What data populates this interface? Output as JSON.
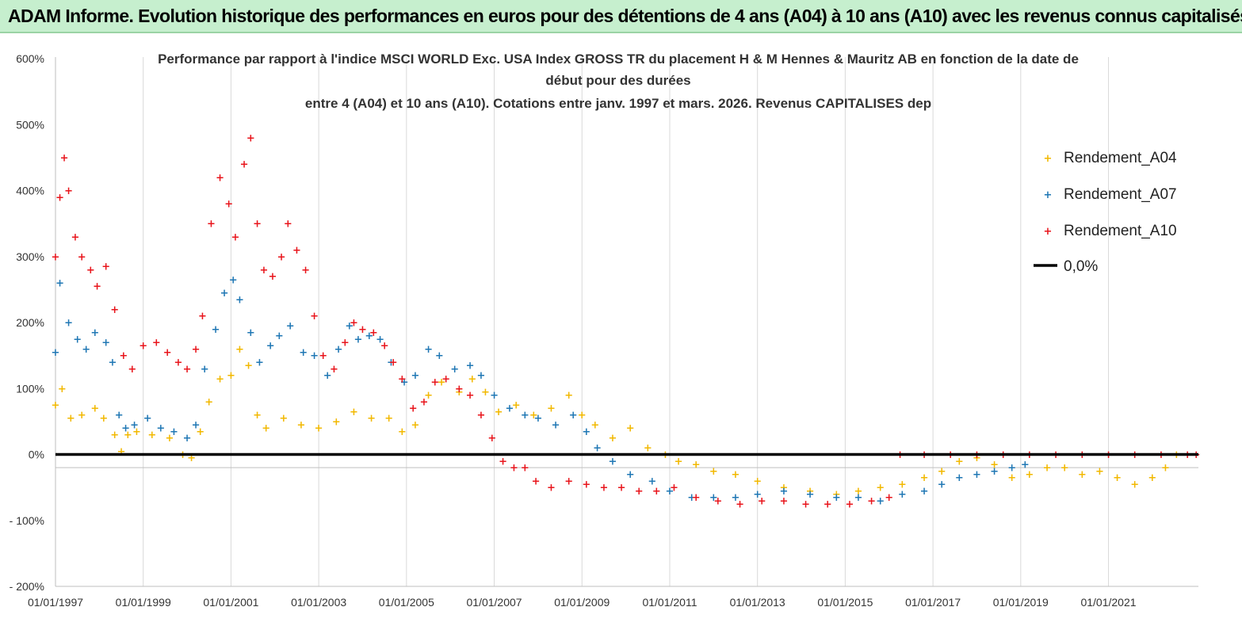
{
  "banner": {
    "title": "ADAM Informe. Evolution historique des performances en euros pour des détentions de 4 ans (A04) à 10 ans (A10) avec les revenus connus capitalisés",
    "background": "#c6efce"
  },
  "chart_data": {
    "type": "scatter",
    "title_lines": [
      "Performance par rapport à l'indice MSCI WORLD Exc. USA Index GROSS TR  du placement H & M Hennes & Mauritz AB en fonction de la date de",
      "début pour des durées",
      "entre 4 (A04) et 10 ans (A10). Cotations entre janv. 1997 et mars. 2026. Revenus CAPITALISES dep"
    ],
    "xlabel": "",
    "ylabel": "",
    "xlim": [
      1997.0,
      2023.05
    ],
    "ylim": [
      -200,
      600
    ],
    "x_ticks": [
      {
        "x": 1997,
        "label": "01/01/1997"
      },
      {
        "x": 1999,
        "label": "01/01/1999"
      },
      {
        "x": 2001,
        "label": "01/01/2001"
      },
      {
        "x": 2003,
        "label": "01/01/2003"
      },
      {
        "x": 2005,
        "label": "01/01/2005"
      },
      {
        "x": 2007,
        "label": "01/01/2007"
      },
      {
        "x": 2009,
        "label": "01/01/2009"
      },
      {
        "x": 2011,
        "label": "01/01/2011"
      },
      {
        "x": 2013,
        "label": "01/01/2013"
      },
      {
        "x": 2015,
        "label": "01/01/2015"
      },
      {
        "x": 2017,
        "label": "01/01/2017"
      },
      {
        "x": 2019,
        "label": "01/01/2019"
      },
      {
        "x": 2021,
        "label": "01/01/2021"
      }
    ],
    "y_ticks": [
      {
        "y": 600,
        "label": "600%"
      },
      {
        "y": 500,
        "label": "500%"
      },
      {
        "y": 400,
        "label": "400%"
      },
      {
        "y": 300,
        "label": "300%"
      },
      {
        "y": 200,
        "label": "200%"
      },
      {
        "y": 100,
        "label": "100%"
      },
      {
        "y": 0,
        "label": "0%"
      },
      {
        "y": -100,
        "label": "- 100%"
      },
      {
        "y": -200,
        "label": "- 200%"
      }
    ],
    "grid": "vertical",
    "legend_position": "top-right",
    "series": [
      {
        "name": "Rendement_A04",
        "color": "#f2b800",
        "marker": "+",
        "points": [
          [
            1997.0,
            75
          ],
          [
            1997.15,
            100
          ],
          [
            1997.35,
            55
          ],
          [
            1997.6,
            60
          ],
          [
            1997.9,
            70
          ],
          [
            1998.1,
            55
          ],
          [
            1998.35,
            30
          ],
          [
            1998.5,
            5
          ],
          [
            1998.65,
            30
          ],
          [
            1998.85,
            35
          ],
          [
            1999.2,
            30
          ],
          [
            1999.6,
            25
          ],
          [
            1999.9,
            0
          ],
          [
            2000.1,
            -5
          ],
          [
            2000.3,
            35
          ],
          [
            2000.5,
            80
          ],
          [
            2000.75,
            115
          ],
          [
            2001.0,
            120
          ],
          [
            2001.2,
            160
          ],
          [
            2001.4,
            135
          ],
          [
            2001.6,
            60
          ],
          [
            2001.8,
            40
          ],
          [
            2002.2,
            55
          ],
          [
            2002.6,
            45
          ],
          [
            2003.0,
            40
          ],
          [
            2003.4,
            50
          ],
          [
            2003.8,
            65
          ],
          [
            2004.2,
            55
          ],
          [
            2004.6,
            55
          ],
          [
            2004.9,
            35
          ],
          [
            2005.2,
            45
          ],
          [
            2005.5,
            90
          ],
          [
            2005.8,
            110
          ],
          [
            2006.2,
            95
          ],
          [
            2006.5,
            115
          ],
          [
            2006.8,
            95
          ],
          [
            2007.1,
            65
          ],
          [
            2007.5,
            75
          ],
          [
            2007.9,
            60
          ],
          [
            2008.3,
            70
          ],
          [
            2008.7,
            90
          ],
          [
            2009.0,
            60
          ],
          [
            2009.3,
            45
          ],
          [
            2009.7,
            25
          ],
          [
            2010.1,
            40
          ],
          [
            2010.5,
            10
          ],
          [
            2010.9,
            0
          ],
          [
            2011.2,
            -10
          ],
          [
            2011.6,
            -15
          ],
          [
            2012.0,
            -25
          ],
          [
            2012.5,
            -30
          ],
          [
            2013.0,
            -40
          ],
          [
            2013.6,
            -50
          ],
          [
            2014.2,
            -55
          ],
          [
            2014.8,
            -60
          ],
          [
            2015.3,
            -55
          ],
          [
            2015.8,
            -50
          ],
          [
            2016.3,
            -45
          ],
          [
            2016.8,
            -35
          ],
          [
            2017.2,
            -25
          ],
          [
            2017.6,
            -10
          ],
          [
            2018.0,
            -5
          ],
          [
            2018.4,
            -15
          ],
          [
            2018.8,
            -35
          ],
          [
            2019.2,
            -30
          ],
          [
            2019.6,
            -20
          ],
          [
            2020.0,
            -20
          ],
          [
            2020.4,
            -30
          ],
          [
            2020.8,
            -25
          ],
          [
            2021.2,
            -35
          ],
          [
            2021.6,
            -45
          ],
          [
            2022.0,
            -35
          ],
          [
            2022.3,
            -20
          ],
          [
            2022.55,
            0
          ]
        ]
      },
      {
        "name": "Rendement_A07",
        "color": "#1f77b4",
        "marker": "+",
        "points": [
          [
            1997.0,
            155
          ],
          [
            1997.1,
            260
          ],
          [
            1997.3,
            200
          ],
          [
            1997.5,
            175
          ],
          [
            1997.7,
            160
          ],
          [
            1997.9,
            185
          ],
          [
            1998.15,
            170
          ],
          [
            1998.3,
            140
          ],
          [
            1998.45,
            60
          ],
          [
            1998.6,
            40
          ],
          [
            1998.8,
            45
          ],
          [
            1999.1,
            55
          ],
          [
            1999.4,
            40
          ],
          [
            1999.7,
            35
          ],
          [
            2000.0,
            25
          ],
          [
            2000.2,
            45
          ],
          [
            2000.4,
            130
          ],
          [
            2000.65,
            190
          ],
          [
            2000.85,
            245
          ],
          [
            2001.05,
            265
          ],
          [
            2001.2,
            235
          ],
          [
            2001.45,
            185
          ],
          [
            2001.65,
            140
          ],
          [
            2001.9,
            165
          ],
          [
            2002.1,
            180
          ],
          [
            2002.35,
            195
          ],
          [
            2002.65,
            155
          ],
          [
            2002.9,
            150
          ],
          [
            2003.2,
            120
          ],
          [
            2003.45,
            160
          ],
          [
            2003.7,
            195
          ],
          [
            2003.9,
            175
          ],
          [
            2004.15,
            180
          ],
          [
            2004.4,
            175
          ],
          [
            2004.65,
            140
          ],
          [
            2004.95,
            110
          ],
          [
            2005.2,
            120
          ],
          [
            2005.5,
            160
          ],
          [
            2005.75,
            150
          ],
          [
            2006.1,
            130
          ],
          [
            2006.45,
            135
          ],
          [
            2006.7,
            120
          ],
          [
            2007.0,
            90
          ],
          [
            2007.35,
            70
          ],
          [
            2007.7,
            60
          ],
          [
            2008.0,
            55
          ],
          [
            2008.4,
            45
          ],
          [
            2008.8,
            60
          ],
          [
            2009.1,
            35
          ],
          [
            2009.35,
            10
          ],
          [
            2009.7,
            -10
          ],
          [
            2010.1,
            -30
          ],
          [
            2010.6,
            -40
          ],
          [
            2011.0,
            -55
          ],
          [
            2011.5,
            -65
          ],
          [
            2012.0,
            -65
          ],
          [
            2012.5,
            -65
          ],
          [
            2013.0,
            -60
          ],
          [
            2013.6,
            -55
          ],
          [
            2014.2,
            -60
          ],
          [
            2014.8,
            -65
          ],
          [
            2015.3,
            -65
          ],
          [
            2015.8,
            -70
          ],
          [
            2016.3,
            -60
          ],
          [
            2016.8,
            -55
          ],
          [
            2017.2,
            -45
          ],
          [
            2017.6,
            -35
          ],
          [
            2018.0,
            -30
          ],
          [
            2018.4,
            -25
          ],
          [
            2018.8,
            -20
          ],
          [
            2019.1,
            -15
          ]
        ]
      },
      {
        "name": "Rendement_A10",
        "color": "#e8141b",
        "marker": "+",
        "points": [
          [
            1997.0,
            300
          ],
          [
            1997.1,
            390
          ],
          [
            1997.2,
            450
          ],
          [
            1997.3,
            400
          ],
          [
            1997.45,
            330
          ],
          [
            1997.6,
            300
          ],
          [
            1997.8,
            280
          ],
          [
            1997.95,
            255
          ],
          [
            1998.15,
            285
          ],
          [
            1998.35,
            220
          ],
          [
            1998.55,
            150
          ],
          [
            1998.75,
            130
          ],
          [
            1999.0,
            165
          ],
          [
            1999.3,
            170
          ],
          [
            1999.55,
            155
          ],
          [
            1999.8,
            140
          ],
          [
            2000.0,
            130
          ],
          [
            2000.2,
            160
          ],
          [
            2000.35,
            210
          ],
          [
            2000.55,
            350
          ],
          [
            2000.75,
            420
          ],
          [
            2000.95,
            380
          ],
          [
            2001.1,
            330
          ],
          [
            2001.3,
            440
          ],
          [
            2001.45,
            480
          ],
          [
            2001.6,
            350
          ],
          [
            2001.75,
            280
          ],
          [
            2001.95,
            270
          ],
          [
            2002.15,
            300
          ],
          [
            2002.3,
            350
          ],
          [
            2002.5,
            310
          ],
          [
            2002.7,
            280
          ],
          [
            2002.9,
            210
          ],
          [
            2003.1,
            150
          ],
          [
            2003.35,
            130
          ],
          [
            2003.6,
            170
          ],
          [
            2003.8,
            200
          ],
          [
            2004.0,
            190
          ],
          [
            2004.25,
            185
          ],
          [
            2004.5,
            165
          ],
          [
            2004.7,
            140
          ],
          [
            2004.9,
            115
          ],
          [
            2005.15,
            70
          ],
          [
            2005.4,
            80
          ],
          [
            2005.65,
            110
          ],
          [
            2005.9,
            115
          ],
          [
            2006.2,
            100
          ],
          [
            2006.45,
            90
          ],
          [
            2006.7,
            60
          ],
          [
            2006.95,
            25
          ],
          [
            2007.2,
            -10
          ],
          [
            2007.45,
            -20
          ],
          [
            2007.7,
            -20
          ],
          [
            2007.95,
            -40
          ],
          [
            2008.3,
            -50
          ],
          [
            2008.7,
            -40
          ],
          [
            2009.1,
            -45
          ],
          [
            2009.5,
            -50
          ],
          [
            2009.9,
            -50
          ],
          [
            2010.3,
            -55
          ],
          [
            2010.7,
            -55
          ],
          [
            2011.1,
            -50
          ],
          [
            2011.6,
            -65
          ],
          [
            2012.1,
            -70
          ],
          [
            2012.6,
            -75
          ],
          [
            2013.1,
            -70
          ],
          [
            2013.6,
            -70
          ],
          [
            2014.1,
            -75
          ],
          [
            2014.6,
            -75
          ],
          [
            2015.1,
            -75
          ],
          [
            2015.6,
            -70
          ],
          [
            2016.0,
            -65
          ],
          [
            2016.25,
            0
          ],
          [
            2016.8,
            0
          ],
          [
            2017.4,
            0
          ],
          [
            2018.0,
            0
          ],
          [
            2018.6,
            0
          ],
          [
            2019.2,
            0
          ],
          [
            2019.8,
            0
          ],
          [
            2020.4,
            0
          ],
          [
            2021.0,
            0
          ],
          [
            2021.6,
            0
          ],
          [
            2022.2,
            0
          ],
          [
            2022.8,
            0
          ],
          [
            2023.0,
            0
          ]
        ]
      },
      {
        "name": "0,0%",
        "color": "#000000",
        "type": "line",
        "points": [
          [
            1997.0,
            0
          ],
          [
            2023.05,
            0
          ]
        ]
      }
    ]
  }
}
